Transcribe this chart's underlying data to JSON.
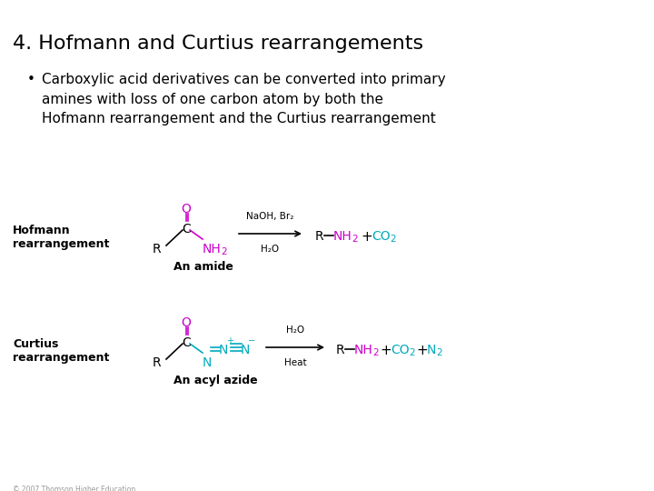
{
  "title": "4. Hofmann and Curtius rearrangements",
  "bullet": "Carboxylic acid derivatives can be converted into primary\namines with loss of one carbon atom by both the\nHofmann rearrangement and the Curtius rearrangement",
  "hofmann_label": "Hofmann\nrearrangement",
  "curtius_label": "Curtius\nrearrangement",
  "amide_label": "An amide",
  "azide_label": "An acyl azide",
  "copyright": "© 2007 Thomson Higher Education",
  "bg_color": "#ffffff",
  "black": "#000000",
  "magenta": "#cc00cc",
  "cyan": "#00aabb"
}
